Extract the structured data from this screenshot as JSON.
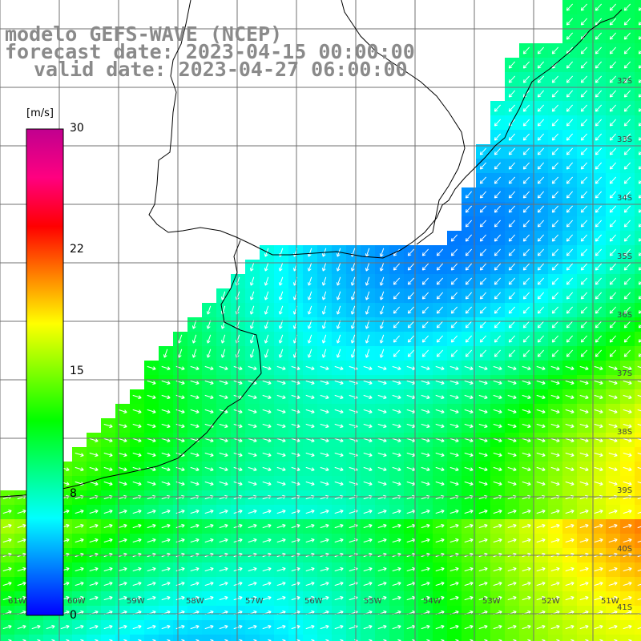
{
  "title": {
    "line1": "modelo GEFS-WAVE (NCEP)",
    "line2": "forecast date: 2023-04-15 00:00:00",
    "line3": "valid date: 2023-04-27 06:00:00"
  },
  "colorbar": {
    "unit": "[m/s]",
    "ticks": [
      "30",
      "22",
      "15",
      "8",
      "0"
    ],
    "colors": [
      "#0000ff",
      "#0080ff",
      "#00ffff",
      "#00ff80",
      "#00ff00",
      "#80ff00",
      "#ffff00",
      "#ff8000",
      "#ff0000",
      "#ff0080",
      "#c0008f"
    ],
    "range": [
      0,
      30
    ]
  },
  "map": {
    "region": "South Atlantic – Rio de la Plata / southern Brazil coast",
    "lat_labels": [
      "32S",
      "33S",
      "34S",
      "35S",
      "36S",
      "37S",
      "38S",
      "39S",
      "40S",
      "41S"
    ],
    "lon_labels": [
      "61W",
      "60W",
      "59W",
      "58W",
      "57W",
      "56W",
      "55W",
      "54W",
      "53W",
      "52W",
      "51W"
    ],
    "colors": {
      "land": "#ffffff",
      "grid": "#707070",
      "coast": "#000000",
      "arrow": "#ffffff"
    }
  }
}
